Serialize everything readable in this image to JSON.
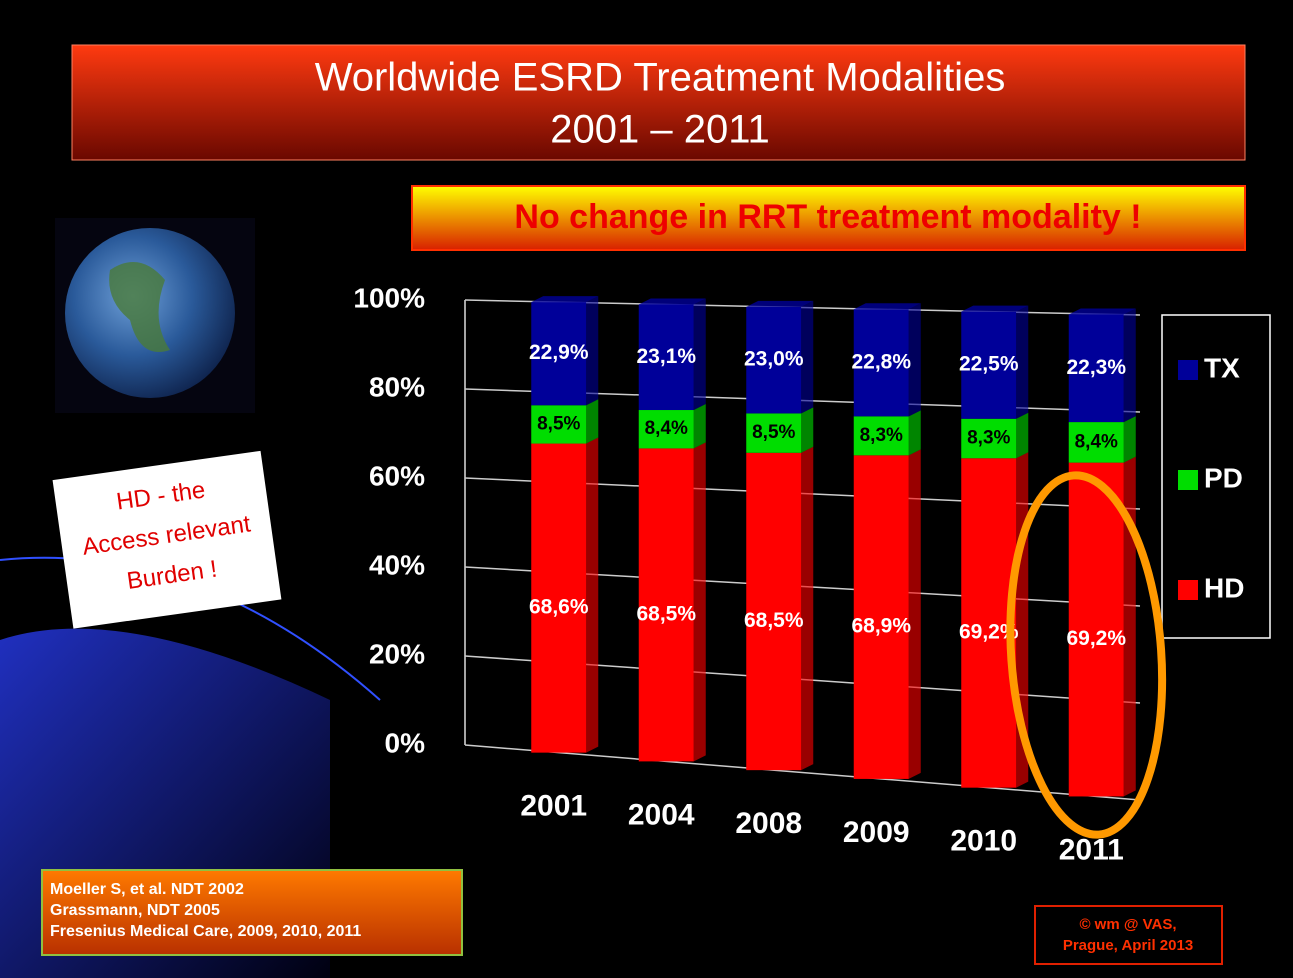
{
  "chart_data": {
    "type": "stacked_bar",
    "title": "Worldwide ESRD Treatment Modalities",
    "subtitle": "2001 – 2011",
    "banner": "No change in RRT treatment modality !",
    "annotation": [
      "HD - the",
      "Access relevant",
      "Burden !"
    ],
    "references": [
      "Moeller S, et al. NDT 2002",
      "Grassmann, NDT 2005",
      "Fresenius Medical Care, 2009, 2010, 2011"
    ],
    "credit": [
      "© wm @ VAS,",
      "Prague, April 2013"
    ],
    "categories": [
      "2001",
      "2004",
      "2008",
      "2009",
      "2010",
      "2011"
    ],
    "series": [
      {
        "name": "HD",
        "color": "#ff0000",
        "values": [
          68.6,
          68.5,
          68.5,
          68.9,
          69.2,
          69.2
        ],
        "value_labels": [
          "68,6%",
          "68,5%",
          "68,5%",
          "68,9%",
          "69,2%",
          "69,2%"
        ]
      },
      {
        "name": "PD",
        "color": "#00dd00",
        "values": [
          8.5,
          8.4,
          8.5,
          8.3,
          8.3,
          8.4
        ],
        "value_labels": [
          "8,5%",
          "8,4%",
          "8,5%",
          "8,3%",
          "8,3%",
          "8,4%"
        ]
      },
      {
        "name": "TX",
        "color": "#000099",
        "values": [
          22.9,
          23.1,
          23.0,
          22.8,
          22.5,
          22.3
        ],
        "value_labels": [
          "22,9%",
          "23,1%",
          "23,0%",
          "22,8%",
          "22,5%",
          "22,3%"
        ]
      }
    ],
    "ylim": [
      0,
      100
    ],
    "yticks": [
      {
        "value": 0,
        "label": "0%"
      },
      {
        "value": 20,
        "label": "20%"
      },
      {
        "value": 40,
        "label": "40%"
      },
      {
        "value": 60,
        "label": "60%"
      },
      {
        "value": 80,
        "label": "80%"
      },
      {
        "value": 100,
        "label": "100%"
      }
    ],
    "grid": true,
    "legend": "right"
  }
}
